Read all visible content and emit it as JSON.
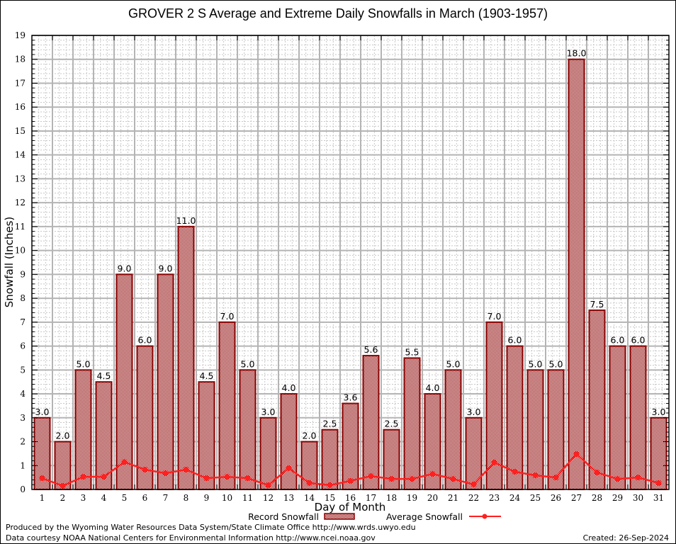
{
  "chart_data": {
    "type": "bar",
    "title": "GROVER 2 S Average and Extreme Daily Snowfalls in March (1903-1957)",
    "xlabel": "Day of Month",
    "ylabel": "Snowfall (Inches)",
    "ylim": [
      0,
      19
    ],
    "xlim": [
      0.5,
      31.5
    ],
    "grid": true,
    "categories": [
      "1",
      "2",
      "3",
      "4",
      "5",
      "6",
      "7",
      "8",
      "9",
      "10",
      "11",
      "12",
      "13",
      "14",
      "15",
      "16",
      "17",
      "18",
      "19",
      "20",
      "21",
      "22",
      "23",
      "24",
      "25",
      "26",
      "27",
      "28",
      "29",
      "30",
      "31"
    ],
    "y_ticks": [
      "0",
      "1",
      "2",
      "3",
      "4",
      "5",
      "6",
      "7",
      "8",
      "9",
      "10",
      "11",
      "12",
      "13",
      "14",
      "15",
      "16",
      "17",
      "18",
      "19"
    ],
    "series": [
      {
        "name": "Record Snowfall",
        "type": "bar",
        "color": "#8b0000",
        "values": [
          3.0,
          2.0,
          5.0,
          4.5,
          9.0,
          6.0,
          9.0,
          11.0,
          4.5,
          7.0,
          5.0,
          3.0,
          4.0,
          2.0,
          2.5,
          3.6,
          5.6,
          2.5,
          5.5,
          4.0,
          5.0,
          3.0,
          7.0,
          6.0,
          5.0,
          5.0,
          18.0,
          7.5,
          6.0,
          6.0,
          3.0
        ],
        "labels": [
          "3.0",
          "2.0",
          "5.0",
          "4.5",
          "9.0",
          "6.0",
          "9.0",
          "11.0",
          "4.5",
          "7.0",
          "5.0",
          "3.0",
          "4.0",
          "2.0",
          "2.5",
          "3.6",
          "5.6",
          "2.5",
          "5.5",
          "4.0",
          "5.0",
          "3.0",
          "7.0",
          "6.0",
          "5.0",
          "5.0",
          "18.0",
          "7.5",
          "6.0",
          "6.0",
          "3.0"
        ]
      },
      {
        "name": "Average Snowfall",
        "type": "line",
        "color": "#ff2020",
        "values": [
          0.47,
          0.15,
          0.53,
          0.53,
          1.15,
          0.83,
          0.68,
          0.83,
          0.47,
          0.53,
          0.47,
          0.18,
          0.89,
          0.27,
          0.18,
          0.36,
          0.56,
          0.44,
          0.44,
          0.65,
          0.44,
          0.21,
          1.13,
          0.74,
          0.59,
          0.5,
          1.48,
          0.71,
          0.44,
          0.5,
          0.27
        ]
      }
    ],
    "legend": {
      "position": "bottom-center"
    }
  },
  "footer": {
    "produced_by": "Produced by the Wyoming Water Resources Data System/State Climate Office http://www.wrds.uwyo.edu",
    "data_courtesy": "Data courtesy NOAA National Centers for Environmental Information http://www.ncei.noaa.gov",
    "created": "Created: 26-Sep-2024"
  }
}
